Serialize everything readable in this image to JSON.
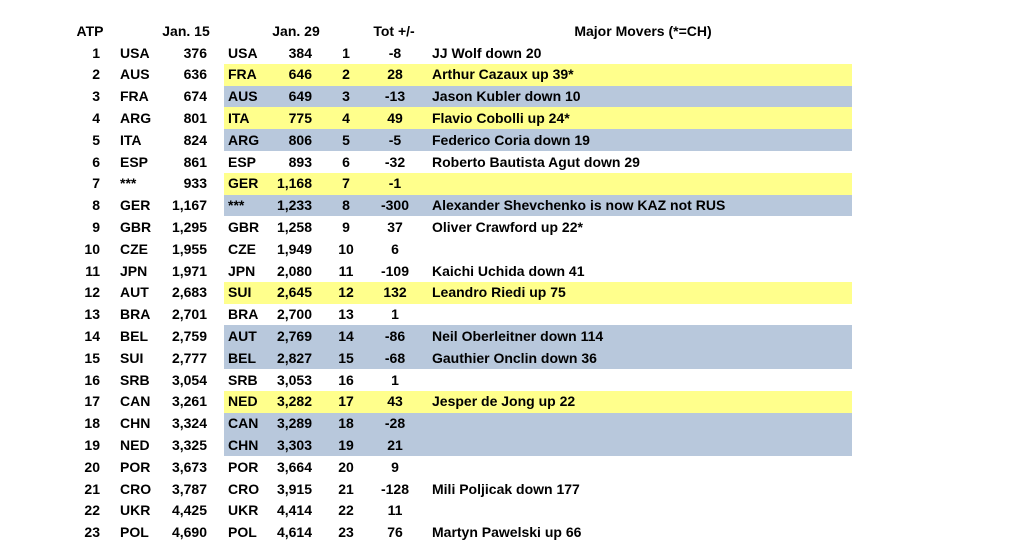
{
  "colors": {
    "yellow": "#ffff8c",
    "blue": "#b8c8dc"
  },
  "header": [
    "ATP",
    "Jan. 15",
    "Jan. 29",
    "Tot +/-",
    "Major Movers (*=CH)"
  ],
  "rows": [
    {
      "cells": [
        "1",
        "USA",
        "376",
        "USA",
        "384",
        "1",
        "-8",
        "JJ Wolf down 20"
      ]
    },
    {
      "cells": [
        "2",
        "AUS",
        "636",
        "FRA",
        "646",
        "2",
        "28",
        "Arthur Cazaux up 39*"
      ],
      "highlight": "yellow"
    },
    {
      "cells": [
        "3",
        "FRA",
        "674",
        "AUS",
        "649",
        "3",
        "-13",
        "Jason Kubler down 10"
      ],
      "highlight": "blue"
    },
    {
      "cells": [
        "4",
        "ARG",
        "801",
        "ITA",
        "775",
        "4",
        "49",
        "Flavio Cobolli up 24*"
      ],
      "highlight": "yellow"
    },
    {
      "cells": [
        "5",
        "ITA",
        "824",
        "ARG",
        "806",
        "5",
        "-5",
        "Federico Coria down 19"
      ],
      "highlight": "blue"
    },
    {
      "cells": [
        "6",
        "ESP",
        "861",
        "ESP",
        "893",
        "6",
        "-32",
        "Roberto Bautista Agut down 29"
      ]
    },
    {
      "cells": [
        "7",
        "***",
        "933",
        "GER",
        "1,168",
        "7",
        "-1"
      ],
      "highlight": "yellow"
    },
    {
      "cells": [
        "8",
        "GER",
        "1,167",
        "***",
        "1,233",
        "8",
        "-300",
        "Alexander Shevchenko is now KAZ not RUS"
      ],
      "highlight": "blue"
    },
    {
      "cells": [
        "9",
        "GBR",
        "1,295",
        "GBR",
        "1,258",
        "9",
        "37",
        "Oliver Crawford up 22*"
      ]
    },
    {
      "cells": [
        "10",
        "CZE",
        "1,955",
        "CZE",
        "1,949",
        "10",
        "6"
      ]
    },
    {
      "cells": [
        "11",
        "JPN",
        "1,971",
        "JPN",
        "2,080",
        "11",
        "-109",
        "Kaichi Uchida down 41"
      ]
    },
    {
      "cells": [
        "12",
        "AUT",
        "2,683",
        "SUI",
        "2,645",
        "12",
        "132",
        "Leandro Riedi up 75"
      ],
      "highlight": "yellow"
    },
    {
      "cells": [
        "13",
        "BRA",
        "2,701",
        "BRA",
        "2,700",
        "13",
        "1"
      ]
    },
    {
      "cells": [
        "14",
        "BEL",
        "2,759",
        "AUT",
        "2,769",
        "14",
        "-86",
        "Neil Oberleitner down 114"
      ],
      "highlight": "blue"
    },
    {
      "cells": [
        "15",
        "SUI",
        "2,777",
        "BEL",
        "2,827",
        "15",
        "-68",
        "Gauthier Onclin down 36"
      ],
      "highlight": "blue"
    },
    {
      "cells": [
        "16",
        "SRB",
        "3,054",
        "SRB",
        "3,053",
        "16",
        "1"
      ]
    },
    {
      "cells": [
        "17",
        "CAN",
        "3,261",
        "NED",
        "3,282",
        "17",
        "43",
        "Jesper de Jong up 22"
      ],
      "highlight": "yellow"
    },
    {
      "cells": [
        "18",
        "CHN",
        "3,324",
        "CAN",
        "3,289",
        "18",
        "-28"
      ],
      "highlight": "blue"
    },
    {
      "cells": [
        "19",
        "NED",
        "3,325",
        "CHN",
        "3,303",
        "19",
        "21"
      ],
      "highlight": "blue"
    },
    {
      "cells": [
        "20",
        "POR",
        "3,673",
        "POR",
        "3,664",
        "20",
        "9"
      ]
    },
    {
      "cells": [
        "21",
        "CRO",
        "3,787",
        "CRO",
        "3,915",
        "21",
        "-128",
        "Mili Poljicak down 177"
      ]
    },
    {
      "cells": [
        "22",
        "UKR",
        "4,425",
        "UKR",
        "4,414",
        "22",
        "11"
      ]
    },
    {
      "cells": [
        "23",
        "POL",
        "4,690",
        "POL",
        "4,614",
        "23",
        "76",
        "Martyn Pawelski up 66"
      ]
    }
  ]
}
